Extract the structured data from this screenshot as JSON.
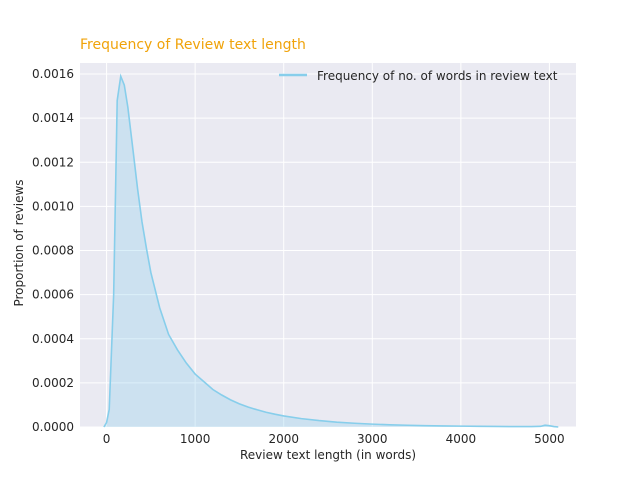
{
  "chart_data": {
    "type": "area",
    "title": "Frequency of Review text length",
    "xlabel": "Review text length (in words)",
    "ylabel": "Proportion of reviews",
    "xlim": [
      -300,
      5300
    ],
    "ylim": [
      0,
      0.00165
    ],
    "x_ticks": [
      0,
      1000,
      2000,
      3000,
      4000,
      5000
    ],
    "x_tick_labels": [
      "0",
      "1000",
      "2000",
      "3000",
      "4000",
      "5000"
    ],
    "y_ticks": [
      0,
      0.0002,
      0.0004,
      0.0006,
      0.0008,
      0.001,
      0.0012,
      0.0014,
      0.0016
    ],
    "y_tick_labels": [
      "0.0000",
      "0.0002",
      "0.0004",
      "0.0006",
      "0.0008",
      "0.0010",
      "0.0012",
      "0.0014",
      "0.0016"
    ],
    "grid": true,
    "legend_position": "top-right",
    "colors": {
      "title": "#f0a30a",
      "line": "#87ceeb",
      "fill": "#87ceeb",
      "plot_bg": "#eaeaf2",
      "grid": "#ffffff",
      "text": "#262626"
    },
    "series": [
      {
        "name": "Frequency of no. of words in review text",
        "x": [
          -30,
          0,
          30,
          80,
          120,
          160,
          200,
          240,
          300,
          350,
          400,
          450,
          500,
          550,
          600,
          650,
          700,
          800,
          900,
          1000,
          1100,
          1200,
          1300,
          1400,
          1500,
          1600,
          1700,
          1800,
          1900,
          2000,
          2200,
          2400,
          2600,
          2800,
          3000,
          3200,
          3400,
          3600,
          3800,
          4000,
          4200,
          4400,
          4600,
          4800,
          4900,
          4950,
          5000,
          5050,
          5100
        ],
        "y": [
          0,
          2e-05,
          8e-05,
          0.0006,
          0.00148,
          0.00159,
          0.00155,
          0.00145,
          0.00125,
          0.00108,
          0.00093,
          0.00081,
          0.0007,
          0.00062,
          0.00054,
          0.00048,
          0.00042,
          0.00035,
          0.00029,
          0.00024,
          0.000205,
          0.00017,
          0.000145,
          0.000123,
          0.000105,
          9e-05,
          7.8e-05,
          6.7e-05,
          5.8e-05,
          5e-05,
          3.8e-05,
          2.9e-05,
          2.2e-05,
          1.7e-05,
          1.3e-05,
          1e-05,
          8e-06,
          6e-06,
          5e-06,
          4e-06,
          3e-06,
          2.5e-06,
          2e-06,
          2e-06,
          3e-06,
          8e-06,
          6e-06,
          2e-06,
          0
        ]
      }
    ]
  }
}
